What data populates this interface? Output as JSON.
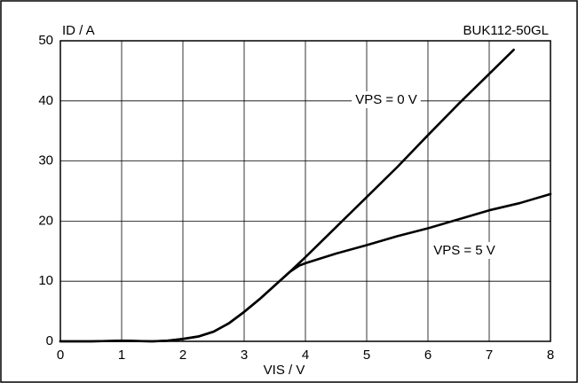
{
  "chart_data": {
    "type": "line",
    "title": "BUK112-50GL",
    "ylabel": "ID / A",
    "xlabel": "VIS / V",
    "xlim": [
      0,
      8
    ],
    "xticks": [
      0,
      1,
      2,
      3,
      4,
      5,
      6,
      7,
      8
    ],
    "ylim": [
      0,
      50
    ],
    "yticks": [
      0,
      10,
      20,
      30,
      40,
      50
    ],
    "grid": true,
    "series": [
      {
        "name": "VPS = 0 V",
        "color": "#000000",
        "x": [
          0,
          0.5,
          1,
          1.5,
          1.75,
          2,
          2.25,
          2.5,
          2.75,
          3,
          3.25,
          3.5,
          3.75,
          4,
          4.5,
          5,
          5.5,
          6,
          6.5,
          7,
          7.4
        ],
        "values": [
          0,
          0,
          0.1,
          0,
          0.1,
          0.4,
          0.8,
          1.6,
          3,
          4.9,
          7,
          9.3,
          11.6,
          14,
          19,
          24,
          29,
          34.3,
          39.5,
          44.5,
          48.5
        ]
      },
      {
        "name": "VPS = 5 V",
        "color": "#000000",
        "x": [
          0,
          0.5,
          1,
          1.5,
          1.75,
          2,
          2.25,
          2.5,
          2.75,
          3,
          3.25,
          3.5,
          3.75,
          3.9,
          4,
          4.5,
          5,
          5.5,
          6,
          6.5,
          7,
          7.5,
          8
        ],
        "values": [
          0,
          0,
          0.1,
          0,
          0.1,
          0.4,
          0.8,
          1.6,
          3,
          4.9,
          7,
          9.3,
          11.6,
          12.6,
          13,
          14.6,
          16,
          17.5,
          18.8,
          20.3,
          21.8,
          23,
          24.5
        ]
      }
    ]
  }
}
